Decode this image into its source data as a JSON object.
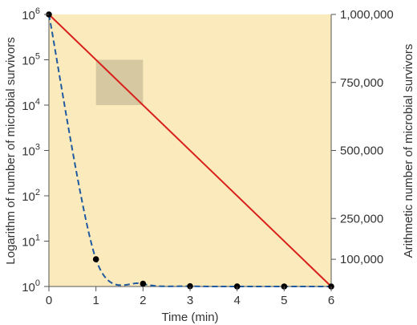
{
  "chart_data": {
    "type": "line",
    "x_label": "Time (min)",
    "y_left_label": "Logarithm of number of microbial survivors",
    "y_right_label": "Arithmetic number of microbial survivors",
    "x_ticks": [
      "0",
      "1",
      "2",
      "3",
      "4",
      "5",
      "6"
    ],
    "x_range": [
      0,
      6
    ],
    "y_left_ticks": [
      {
        "base": "10",
        "exp": "0",
        "log": 0
      },
      {
        "base": "10",
        "exp": "1",
        "log": 1
      },
      {
        "base": "10",
        "exp": "2",
        "log": 2
      },
      {
        "base": "10",
        "exp": "3",
        "log": 3
      },
      {
        "base": "10",
        "exp": "4",
        "log": 4
      },
      {
        "base": "10",
        "exp": "5",
        "log": 5
      },
      {
        "base": "10",
        "exp": "6",
        "log": 6
      }
    ],
    "y_left_range_log10": [
      0,
      6
    ],
    "y_right_ticks": [
      {
        "label": "100,000",
        "value": 100000
      },
      {
        "label": "250,000",
        "value": 250000
      },
      {
        "label": "500,000",
        "value": 500000
      },
      {
        "label": "750,000",
        "value": 750000
      },
      {
        "label": "1,000,000",
        "value": 1000000
      }
    ],
    "y_right_range": [
      0,
      1000000
    ],
    "series": [
      {
        "style": "solid",
        "color": "#d8201c",
        "scale": "log (left axis)",
        "points": [
          {
            "x": 0,
            "y": 1000000
          },
          {
            "x": 6,
            "y": 1
          }
        ]
      },
      {
        "style": "dashed",
        "color": "#1f5aa0",
        "scale": "arithmetic (right axis)",
        "points": [
          {
            "x": 0,
            "y": 1000000
          },
          {
            "x": 1,
            "y": 100000
          },
          {
            "x": 2,
            "y": 10000
          },
          {
            "x": 3,
            "y": 1000
          },
          {
            "x": 4,
            "y": 100
          },
          {
            "x": 5,
            "y": 10
          },
          {
            "x": 6,
            "y": 1
          }
        ]
      }
    ],
    "highlight_region": {
      "x": [
        1,
        2
      ],
      "y": [
        10000,
        100000
      ]
    },
    "colors": {
      "background": "#fbeabb",
      "highlight": "#d6c8a0",
      "markers": "#000000",
      "axes": "#555555"
    }
  }
}
